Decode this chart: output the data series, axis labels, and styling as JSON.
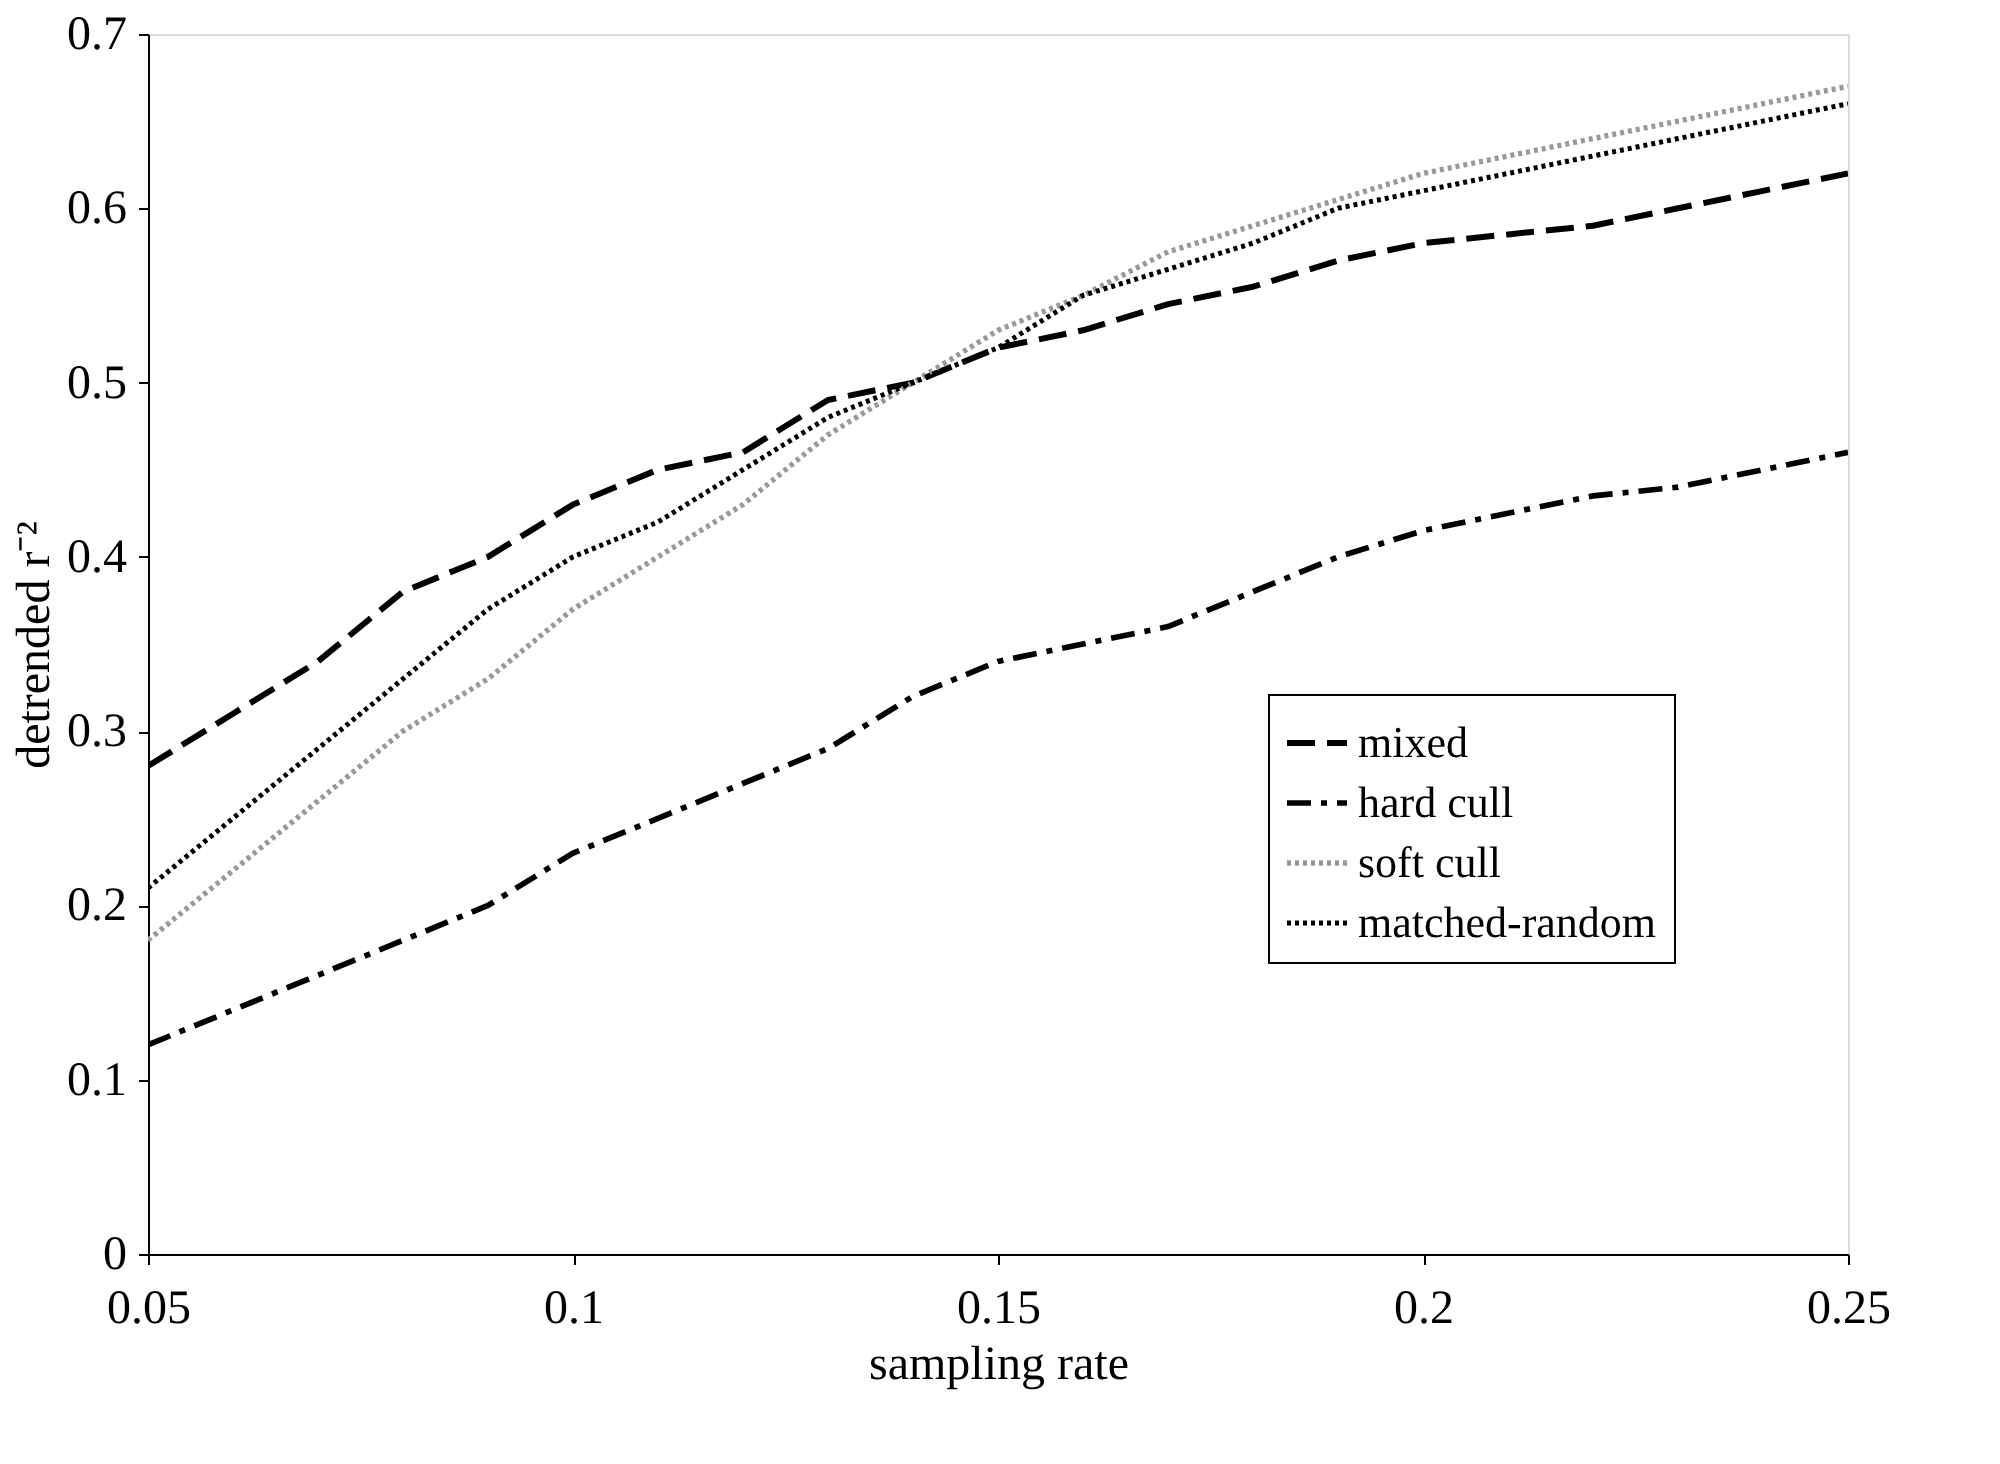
{
  "chart_data": {
    "type": "line",
    "xlabel": "sampling rate",
    "ylabel": "detrended r⁻²",
    "x": [
      0.05,
      0.06,
      0.07,
      0.08,
      0.09,
      0.1,
      0.11,
      0.12,
      0.13,
      0.14,
      0.15,
      0.16,
      0.17,
      0.18,
      0.19,
      0.2,
      0.21,
      0.22,
      0.23,
      0.24,
      0.25
    ],
    "series": [
      {
        "name": "mixed",
        "color": "#000000",
        "line_style": "dashed",
        "values": [
          0.28,
          0.31,
          0.34,
          0.38,
          0.4,
          0.43,
          0.45,
          0.46,
          0.49,
          0.5,
          0.52,
          0.53,
          0.545,
          0.555,
          0.57,
          0.58,
          0.585,
          0.59,
          0.6,
          0.61,
          0.62
        ]
      },
      {
        "name": "hard cull",
        "color": "#000000",
        "line_style": "dashdot",
        "values": [
          0.12,
          0.14,
          0.16,
          0.18,
          0.2,
          0.23,
          0.25,
          0.27,
          0.29,
          0.32,
          0.34,
          0.35,
          0.36,
          0.38,
          0.4,
          0.415,
          0.425,
          0.435,
          0.44,
          0.45,
          0.46
        ]
      },
      {
        "name": "soft cull",
        "color": "#999999",
        "line_style": "dotted",
        "values": [
          0.18,
          0.22,
          0.26,
          0.3,
          0.33,
          0.37,
          0.4,
          0.43,
          0.47,
          0.5,
          0.53,
          0.55,
          0.575,
          0.59,
          0.605,
          0.62,
          0.63,
          0.64,
          0.65,
          0.66,
          0.67
        ]
      },
      {
        "name": "matched-random",
        "color": "#000000",
        "line_style": "dotted",
        "values": [
          0.21,
          0.25,
          0.29,
          0.33,
          0.37,
          0.4,
          0.42,
          0.45,
          0.48,
          0.5,
          0.52,
          0.55,
          0.565,
          0.58,
          0.6,
          0.61,
          0.62,
          0.63,
          0.64,
          0.65,
          0.66
        ]
      }
    ],
    "xlim": [
      0.05,
      0.25
    ],
    "xticks": [
      0.05,
      0.1,
      0.15,
      0.2,
      0.25
    ],
    "ylim": [
      0,
      0.7
    ],
    "yticks": [
      0,
      0.1,
      0.2,
      0.3,
      0.4,
      0.5,
      0.6,
      0.7
    ],
    "grid": false,
    "legend": "right",
    "marker": "none"
  }
}
